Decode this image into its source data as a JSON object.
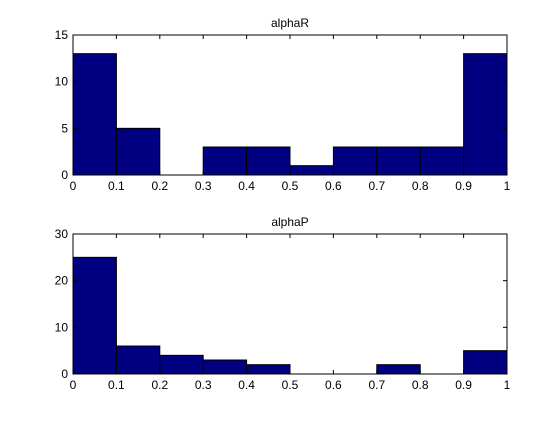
{
  "figure": {
    "background": "#ffffff",
    "bar_color": "#000080"
  },
  "chart_data": [
    {
      "type": "bar",
      "title": "alphaR",
      "bin_edges": [
        0,
        0.1,
        0.2,
        0.3,
        0.4,
        0.5,
        0.6,
        0.7,
        0.8,
        0.9,
        1
      ],
      "values": [
        13,
        5,
        0,
        3,
        3,
        1,
        3,
        3,
        3,
        13
      ],
      "xlim": [
        0,
        1
      ],
      "ylim": [
        0,
        15
      ],
      "xticks": [
        "0",
        "0.1",
        "0.2",
        "0.3",
        "0.4",
        "0.5",
        "0.6",
        "0.7",
        "0.8",
        "0.9",
        "1"
      ],
      "yticks": [
        "0",
        "5",
        "10",
        "15"
      ],
      "grid": false
    },
    {
      "type": "bar",
      "title": "alphaP",
      "bin_edges": [
        0,
        0.1,
        0.2,
        0.3,
        0.4,
        0.5,
        0.6,
        0.7,
        0.8,
        0.9,
        1
      ],
      "values": [
        25,
        6,
        4,
        3,
        2,
        0,
        0,
        2,
        0,
        5
      ],
      "xlim": [
        0,
        1
      ],
      "ylim": [
        0,
        30
      ],
      "xticks": [
        "0",
        "0.1",
        "0.2",
        "0.3",
        "0.4",
        "0.5",
        "0.6",
        "0.7",
        "0.8",
        "0.9",
        "1"
      ],
      "yticks": [
        "0",
        "10",
        "20",
        "30"
      ],
      "grid": false
    }
  ]
}
